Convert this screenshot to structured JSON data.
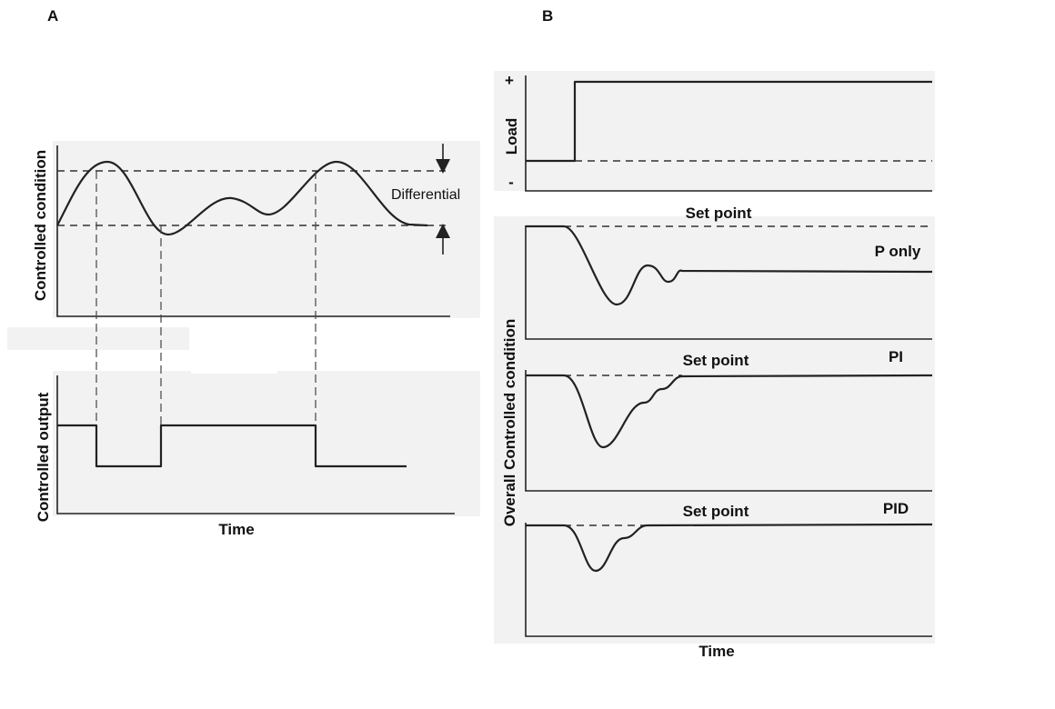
{
  "panel_a": {
    "letter": "A",
    "top_ylabel": "Controlled condition",
    "bottom_ylabel": "Controlled output",
    "differential": "Differential",
    "xlabel": "Time"
  },
  "panel_b": {
    "letter": "B",
    "load_label": "Load",
    "plus": "+",
    "minus": "-",
    "ylabel": "Overall Controlled condition",
    "xlabel": "Time",
    "plots": [
      {
        "tag": "P only",
        "setpoint": "Set point"
      },
      {
        "tag": "PI",
        "setpoint": "Set point"
      },
      {
        "tag": "PID",
        "setpoint": "Set point"
      }
    ]
  }
}
